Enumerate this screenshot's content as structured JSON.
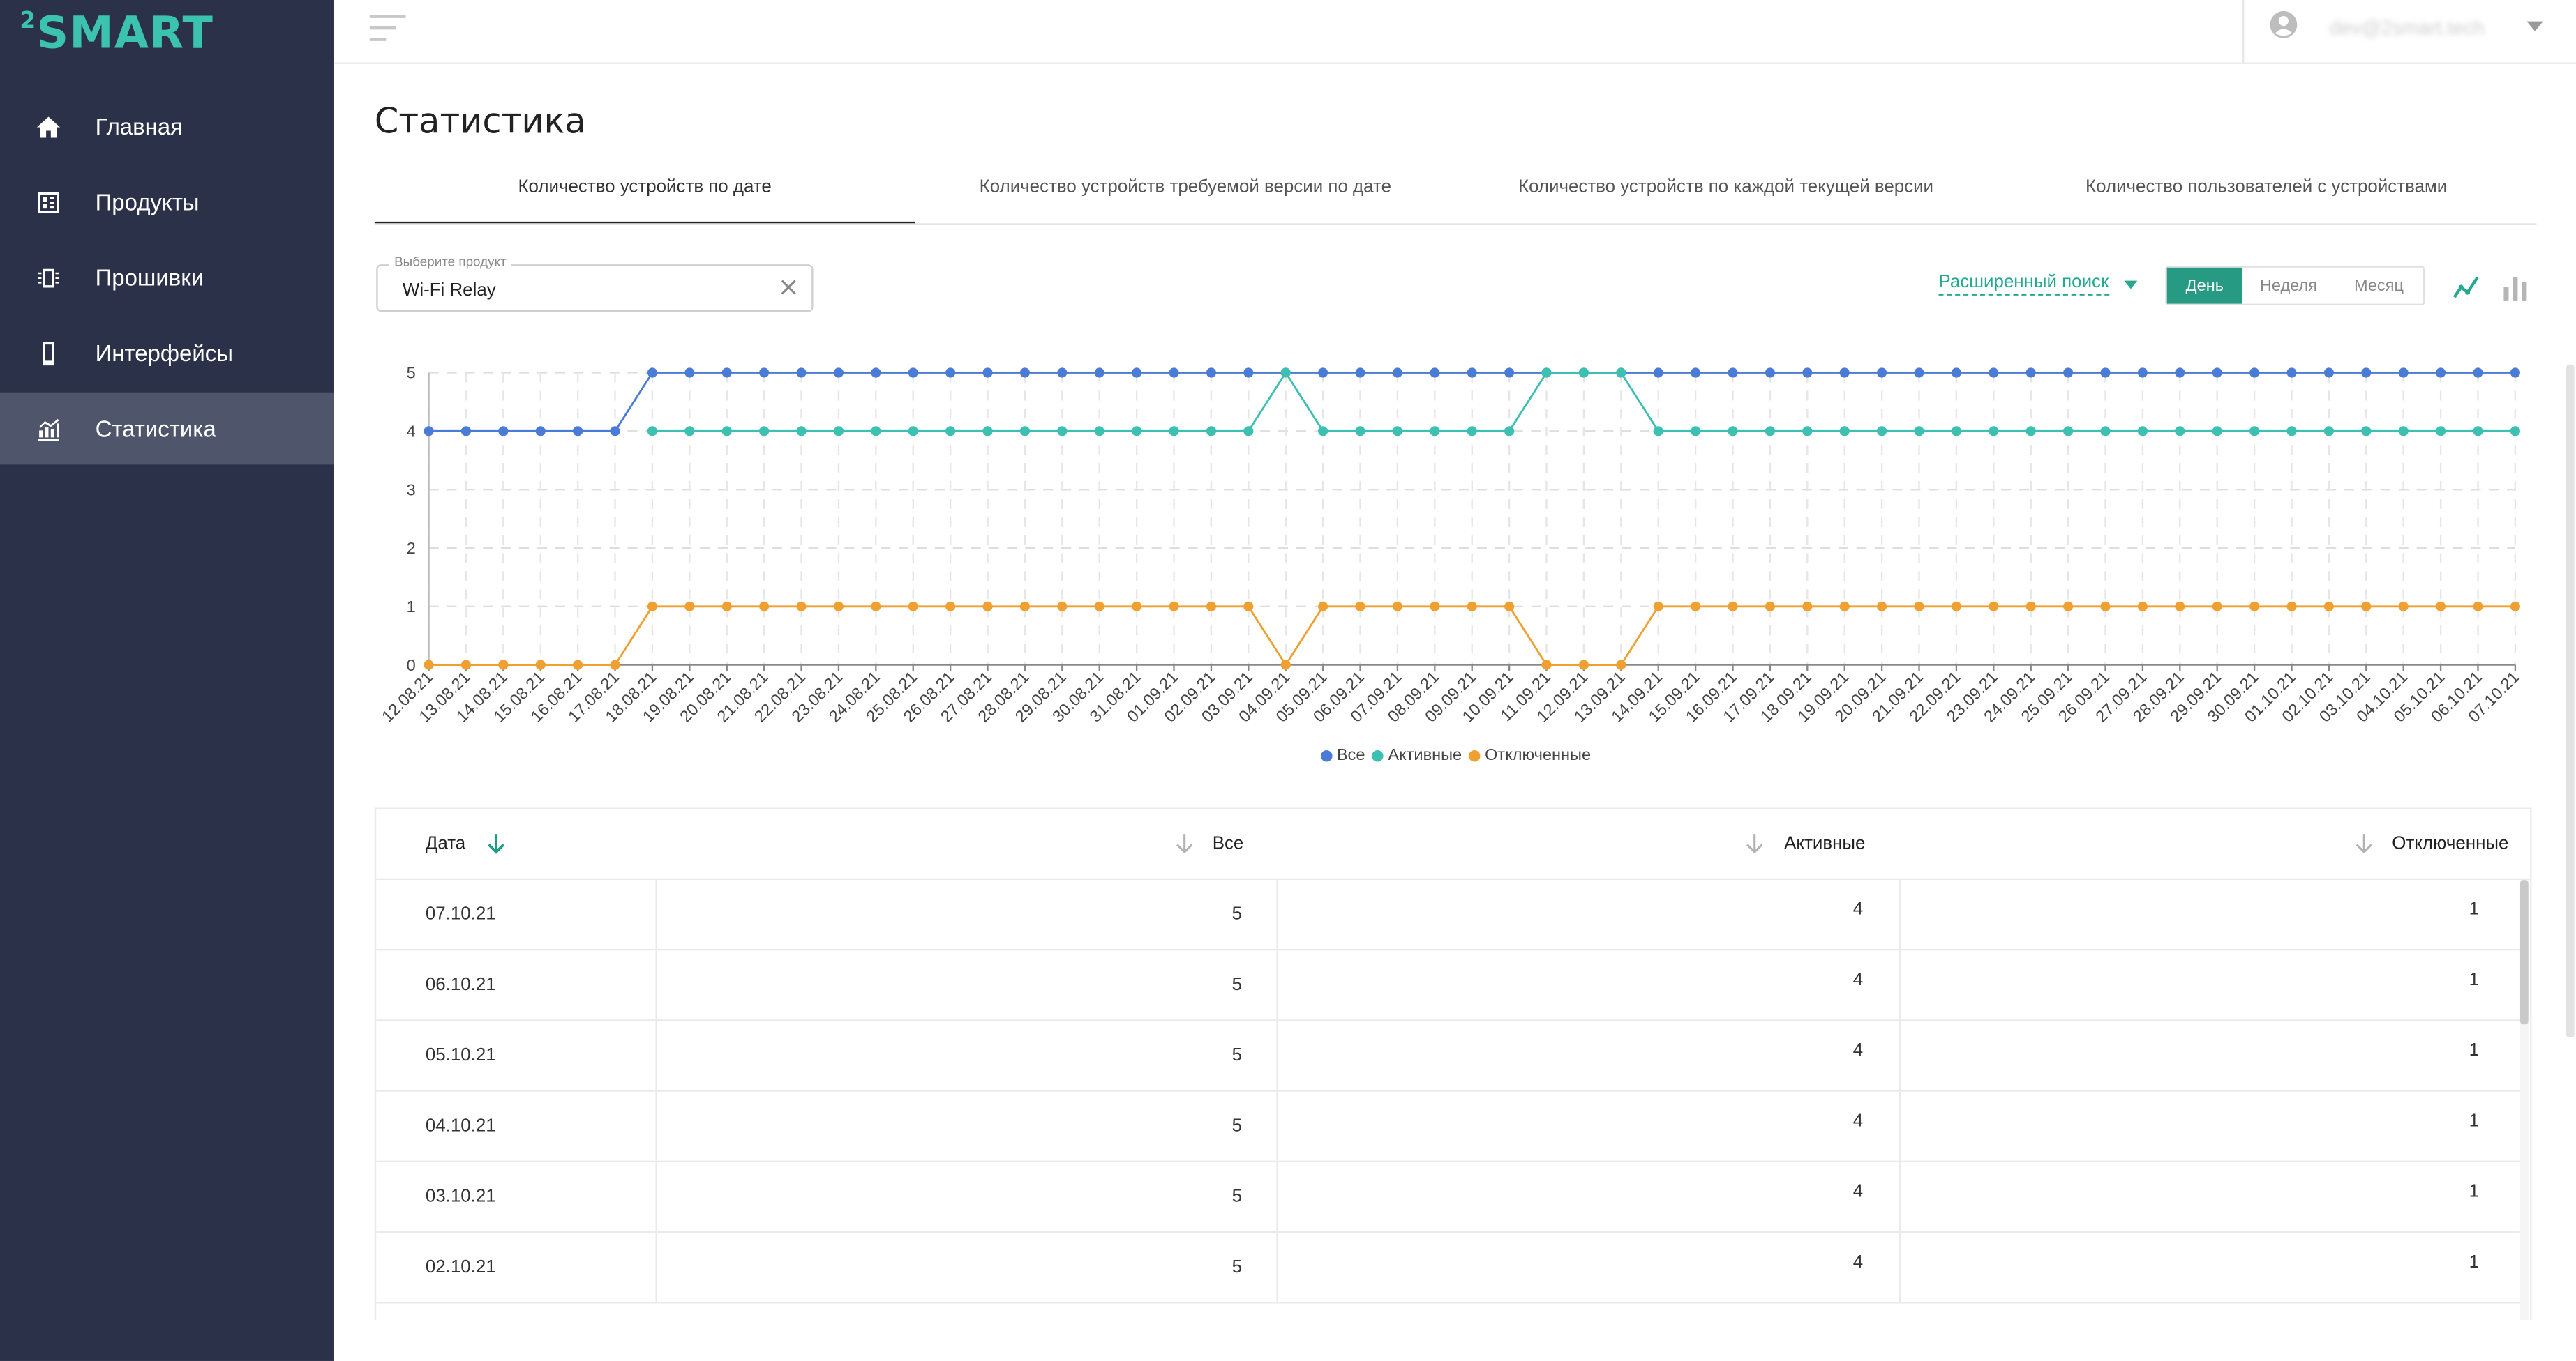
{
  "app": {
    "logo": {
      "sup": "2",
      "text": "SMART"
    },
    "user_email": "dev@2smart.tech"
  },
  "sidebar": {
    "items": [
      {
        "label": "Главная",
        "icon": "home-icon"
      },
      {
        "label": "Продукты",
        "icon": "products-icon"
      },
      {
        "label": "Прошивки",
        "icon": "firmware-icon"
      },
      {
        "label": "Интерфейсы",
        "icon": "phone-icon"
      },
      {
        "label": "Статистика",
        "icon": "statistics-icon",
        "active": true
      }
    ]
  },
  "page": {
    "title": "Статистика"
  },
  "tabs": [
    {
      "label": "Количество устройств по дате",
      "active": true
    },
    {
      "label": "Количество устройств требуемой версии по дате"
    },
    {
      "label": "Количество устройств по каждой текущей версии"
    },
    {
      "label": "Количество пользователей с устройствами"
    }
  ],
  "filters": {
    "product_label": "Выберите продукт",
    "product_value": "Wi-Fi Relay",
    "advanced_search": "Расширенный поиск",
    "periods": [
      {
        "label": "День",
        "active": true
      },
      {
        "label": "Неделя"
      },
      {
        "label": "Месяц"
      }
    ]
  },
  "colors": {
    "accent": "#269a83",
    "sidebar_bg": "#2b3149",
    "series_all": "#4a7bd6",
    "series_active": "#3dbfb2",
    "series_disabled": "#f0a030"
  },
  "chart_data": {
    "type": "line",
    "x": [
      "12.08.21",
      "13.08.21",
      "14.08.21",
      "15.08.21",
      "16.08.21",
      "17.08.21",
      "18.08.21",
      "19.08.21",
      "20.08.21",
      "21.08.21",
      "22.08.21",
      "23.08.21",
      "24.08.21",
      "25.08.21",
      "26.08.21",
      "27.08.21",
      "28.08.21",
      "29.08.21",
      "30.08.21",
      "31.08.21",
      "01.09.21",
      "02.09.21",
      "03.09.21",
      "04.09.21",
      "05.09.21",
      "06.09.21",
      "07.09.21",
      "08.09.21",
      "09.09.21",
      "10.09.21",
      "11.09.21",
      "12.09.21",
      "13.09.21",
      "14.09.21",
      "15.09.21",
      "16.09.21",
      "17.09.21",
      "18.09.21",
      "19.09.21",
      "20.09.21",
      "21.09.21",
      "22.09.21",
      "23.09.21",
      "24.09.21",
      "25.09.21",
      "26.09.21",
      "27.09.21",
      "28.09.21",
      "29.09.21",
      "30.09.21",
      "01.10.21",
      "02.10.21",
      "03.10.21",
      "04.10.21",
      "05.10.21",
      "06.10.21",
      "07.10.21"
    ],
    "series": [
      {
        "name": "Все",
        "color": "#4a7bd6",
        "values": [
          4,
          4,
          4,
          4,
          4,
          4,
          5,
          5,
          5,
          5,
          5,
          5,
          5,
          5,
          5,
          5,
          5,
          5,
          5,
          5,
          5,
          5,
          5,
          5,
          5,
          5,
          5,
          5,
          5,
          5,
          5,
          5,
          5,
          5,
          5,
          5,
          5,
          5,
          5,
          5,
          5,
          5,
          5,
          5,
          5,
          5,
          5,
          5,
          5,
          5,
          5,
          5,
          5,
          5,
          5,
          5,
          5
        ]
      },
      {
        "name": "Активные",
        "color": "#3dbfb2",
        "values": [
          null,
          null,
          null,
          null,
          null,
          null,
          4,
          4,
          4,
          4,
          4,
          4,
          4,
          4,
          4,
          4,
          4,
          4,
          4,
          4,
          4,
          4,
          4,
          5,
          4,
          4,
          4,
          4,
          4,
          4,
          5,
          5,
          5,
          4,
          4,
          4,
          4,
          4,
          4,
          4,
          4,
          4,
          4,
          4,
          4,
          4,
          4,
          4,
          4,
          4,
          4,
          4,
          4,
          4,
          4,
          4,
          4
        ]
      },
      {
        "name": "Отключенные",
        "color": "#f0a030",
        "values": [
          0,
          0,
          0,
          0,
          0,
          0,
          1,
          1,
          1,
          1,
          1,
          1,
          1,
          1,
          1,
          1,
          1,
          1,
          1,
          1,
          1,
          1,
          1,
          0,
          1,
          1,
          1,
          1,
          1,
          1,
          0,
          0,
          0,
          1,
          1,
          1,
          1,
          1,
          1,
          1,
          1,
          1,
          1,
          1,
          1,
          1,
          1,
          1,
          1,
          1,
          1,
          1,
          1,
          1,
          1,
          1,
          1
        ]
      }
    ],
    "yticks": [
      0,
      1,
      2,
      3,
      4,
      5
    ],
    "ylim": [
      0,
      5
    ],
    "grid": true,
    "legend_position": "bottom"
  },
  "table": {
    "columns": [
      "Дата",
      "Все",
      "Активные",
      "Отключенные"
    ],
    "rows": [
      [
        "07.10.21",
        "5",
        "4",
        "1"
      ],
      [
        "06.10.21",
        "5",
        "4",
        "1"
      ],
      [
        "05.10.21",
        "5",
        "4",
        "1"
      ],
      [
        "04.10.21",
        "5",
        "4",
        "1"
      ],
      [
        "03.10.21",
        "5",
        "4",
        "1"
      ],
      [
        "02.10.21",
        "5",
        "4",
        "1"
      ]
    ]
  }
}
